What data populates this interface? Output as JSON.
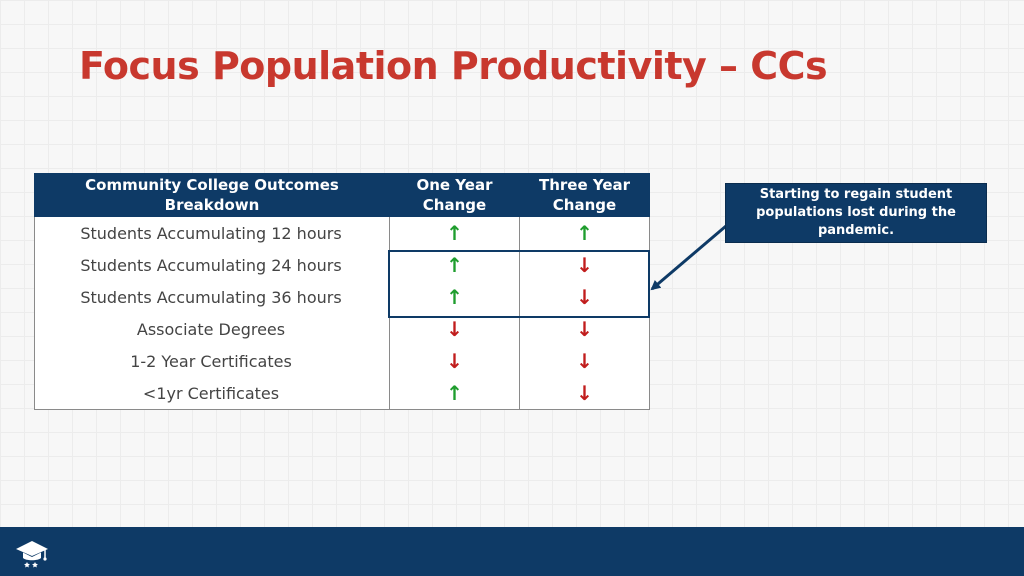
{
  "slide": {
    "title": "Focus Population Productivity – CCs"
  },
  "table": {
    "headers": {
      "outcome": "Community College Outcomes Breakdown",
      "one_year": "One Year Change",
      "three_year": "Three Year Change"
    },
    "rows": [
      {
        "label": "Students Accumulating 12 hours",
        "one_year": "up",
        "three_year": "up"
      },
      {
        "label": "Students Accumulating 24 hours",
        "one_year": "up",
        "three_year": "down"
      },
      {
        "label": "Students Accumulating 36 hours",
        "one_year": "up",
        "three_year": "down"
      },
      {
        "label": "Associate Degrees",
        "one_year": "down",
        "three_year": "down"
      },
      {
        "label": "1-2 Year Certificates",
        "one_year": "down",
        "three_year": "down"
      },
      {
        "label": "<1yr Certificates",
        "one_year": "up",
        "three_year": "down"
      }
    ]
  },
  "callout": {
    "text": "Starting to regain student populations lost during the pandemic."
  },
  "icons": {
    "up": "arrow-up-icon",
    "down": "arrow-down-icon",
    "logo": "graduation-cap-logo-icon"
  },
  "colors": {
    "title": "#c8382e",
    "navy": "#0e3a66",
    "up": "#1f9d2e",
    "down": "#c11d1d"
  }
}
